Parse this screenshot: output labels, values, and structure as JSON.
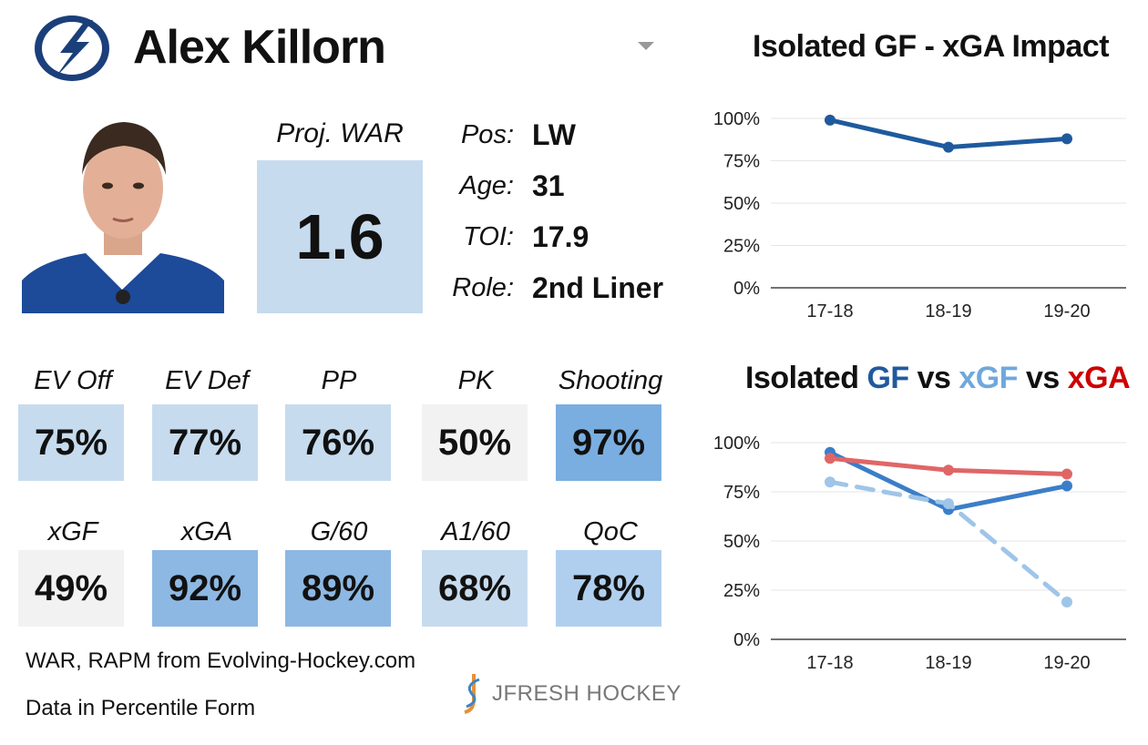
{
  "header": {
    "player_name": "Alex Killorn",
    "team_logo_icon": "lightning-bolt-logo-icon",
    "dropdown_icon": "chevron-down-icon"
  },
  "war": {
    "label": "Proj. WAR",
    "value": "1.6"
  },
  "bio": [
    {
      "label": "Pos:",
      "value": "LW"
    },
    {
      "label": "Age:",
      "value": "31"
    },
    {
      "label": "TOI:",
      "value": "17.9"
    },
    {
      "label": "Role:",
      "value": "2nd Liner"
    }
  ],
  "metrics": [
    {
      "label": "EV Off",
      "value": "75%",
      "color": "#c7dbee"
    },
    {
      "label": "EV Def",
      "value": "77%",
      "color": "#c7dbee"
    },
    {
      "label": "PP",
      "value": "76%",
      "color": "#c7dbee"
    },
    {
      "label": "PK",
      "value": "50%",
      "color": "#f2f2f2"
    },
    {
      "label": "Shooting",
      "value": "97%",
      "color": "#7aaee0"
    },
    {
      "label": "xGF",
      "value": "49%",
      "color": "#f2f2f2"
    },
    {
      "label": "xGA",
      "value": "92%",
      "color": "#8db8e3"
    },
    {
      "label": "G/60",
      "value": "89%",
      "color": "#8db8e3"
    },
    {
      "label": "A1/60",
      "value": "68%",
      "color": "#c7dbee"
    },
    {
      "label": "QoC",
      "value": "78%",
      "color": "#b0cfee"
    }
  ],
  "footer": {
    "line1": "WAR, RAPM from  Evolving-Hockey.com",
    "line2": "Data in Percentile Form",
    "brand": "JFRESH HOCKEY"
  },
  "chart_data": [
    {
      "type": "line",
      "title": "Isolated GF - xGA Impact",
      "categories": [
        "17-18",
        "18-19",
        "19-20"
      ],
      "ylim": [
        0,
        100
      ],
      "yticks": [
        "0%",
        "25%",
        "50%",
        "75%",
        "100%"
      ],
      "grid": true,
      "series": [
        {
          "values": [
            99,
            83,
            88
          ],
          "color": "#1f5a9e",
          "dash": false
        }
      ]
    },
    {
      "type": "line",
      "title_parts": [
        {
          "text": "Isolated ",
          "color": "#111111"
        },
        {
          "text": "GF",
          "color": "#1f5a9e"
        },
        {
          "text": " vs ",
          "color": "#111111"
        },
        {
          "text": "xGF",
          "color": "#6fa8dc"
        },
        {
          "text": " vs ",
          "color": "#111111"
        },
        {
          "text": "xGA",
          "color": "#cc0000"
        }
      ],
      "categories": [
        "17-18",
        "18-19",
        "19-20"
      ],
      "ylim": [
        0,
        100
      ],
      "yticks": [
        "0%",
        "25%",
        "50%",
        "75%",
        "100%"
      ],
      "grid": true,
      "series": [
        {
          "name": "GF",
          "values": [
            95,
            66,
            78
          ],
          "color": "#3b7ec8",
          "dash": false
        },
        {
          "name": "xGF",
          "values": [
            80,
            69,
            19
          ],
          "color": "#9fc5e8",
          "dash": true
        },
        {
          "name": "xGA",
          "values": [
            92,
            86,
            84
          ],
          "color": "#e06666",
          "dash": false
        }
      ]
    }
  ]
}
